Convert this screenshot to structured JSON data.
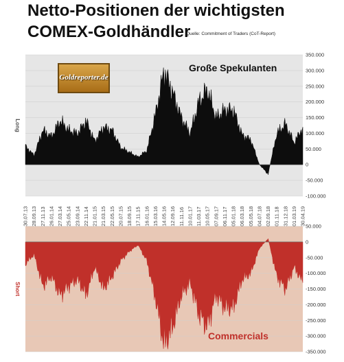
{
  "header": {
    "title_line1": "Netto-Positionen der wichtigsten",
    "title_line2": "COMEX-Goldhändler",
    "source": "Quelle: Commitment of Traders (CoT-Report)",
    "logo_text": "Goldreporter.de"
  },
  "colors": {
    "long_fill": "#0d0d0d",
    "short_fill": "#c0302a",
    "top_background": "#e6e6e6",
    "bottom_background": "#e8c8b6",
    "short_label": "#c0302a"
  },
  "chart_data": [
    {
      "type": "area",
      "inner_label": "Große Spekulanten",
      "ylabel": "Long",
      "ylim": [
        -100000,
        350000
      ],
      "yticks": [
        "350.000",
        "300.000",
        "250.000",
        "200.000",
        "150.000",
        "100.000",
        "50.000",
        "0",
        "-50.000",
        "-100.000"
      ],
      "grid": true,
      "x": [
        "30.07.13",
        "28.09.13",
        "27.11.13",
        "26.01.14",
        "27.03.14",
        "25.05.14",
        "23.09.14",
        "22.11.14",
        "21.01.15",
        "21.03.15",
        "22.05.15",
        "20.07.15",
        "18.09.15",
        "17.11.15",
        "16.01.16",
        "15.03.16",
        "14.05.16",
        "12.09.16",
        "11.11.16",
        "10.01.17",
        "11.03.17",
        "10.05.17",
        "07.09.17",
        "06.11.17",
        "05.01.18",
        "06.03.18",
        "05.05.18",
        "04.07.18",
        "02.09.18",
        "01.11.18",
        "31.12.18",
        "01.03.19",
        "30.04.19"
      ],
      "values": [
        60000,
        30000,
        110000,
        90000,
        140000,
        110000,
        100000,
        140000,
        75000,
        120000,
        110000,
        55000,
        40000,
        25000,
        45000,
        160000,
        300000,
        230000,
        150000,
        100000,
        200000,
        240000,
        150000,
        175000,
        175000,
        95000,
        80000,
        0,
        -30000,
        100000,
        130000,
        70000,
        120000
      ]
    },
    {
      "type": "area",
      "inner_label": "Commercials",
      "ylabel": "Short",
      "ylim": [
        -350000,
        50000
      ],
      "yticks": [
        "50.000",
        "0",
        "-50.000",
        "-100.000",
        "-150.000",
        "-200.000",
        "-250.000",
        "-300.000",
        "-350.000"
      ],
      "grid": true,
      "x": [
        "30.07.13",
        "28.09.13",
        "27.11.13",
        "26.01.14",
        "27.03.14",
        "25.05.14",
        "23.09.14",
        "22.11.14",
        "21.01.15",
        "21.03.15",
        "22.05.15",
        "20.07.15",
        "18.09.15",
        "17.11.15",
        "16.01.16",
        "15.03.16",
        "14.05.16",
        "12.09.16",
        "11.11.16",
        "10.01.17",
        "11.03.17",
        "10.05.17",
        "07.09.17",
        "06.11.17",
        "05.01.18",
        "06.03.18",
        "05.05.18",
        "04.07.18",
        "02.09.18",
        "01.11.18",
        "31.12.18",
        "01.03.19",
        "30.04.19"
      ],
      "values": [
        -70000,
        -40000,
        -140000,
        -110000,
        -170000,
        -140000,
        -120000,
        -170000,
        -80000,
        -150000,
        -110000,
        -60000,
        -30000,
        -10000,
        -60000,
        -180000,
        -330000,
        -270000,
        -170000,
        -130000,
        -230000,
        -270000,
        -170000,
        -210000,
        -210000,
        -120000,
        -100000,
        -20000,
        10000,
        -110000,
        -150000,
        -80000,
        -130000
      ]
    }
  ]
}
